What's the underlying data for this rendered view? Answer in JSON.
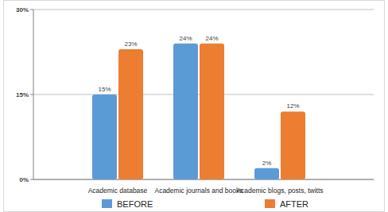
{
  "chart_data": {
    "type": "bar",
    "categories": [
      "Academic database",
      "Academic journals and books",
      "Academic blogs, posts, twitts"
    ],
    "series": [
      {
        "name": "BEFORE",
        "color": "#5b9bd5",
        "values": [
          15,
          24,
          2
        ],
        "value_labels": [
          "15%",
          "24%",
          "2%"
        ]
      },
      {
        "name": "AFTER",
        "color": "#ed7d31",
        "values": [
          23,
          24,
          12
        ],
        "value_labels": [
          "23%",
          "24%",
          "12%"
        ]
      }
    ],
    "ylim": [
      0,
      30
    ],
    "yticks": [
      {
        "value": 0,
        "label": "0%"
      },
      {
        "value": 15,
        "label": "15%"
      },
      {
        "value": 30,
        "label": "30%"
      }
    ],
    "grid": true,
    "data_labels": true,
    "legend": "bottom"
  }
}
